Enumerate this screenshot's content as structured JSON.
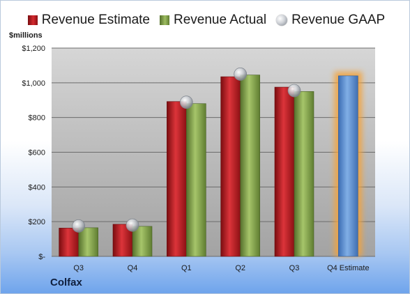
{
  "chart_data": {
    "type": "bar",
    "ylabel": "$millions",
    "ylim": [
      0,
      1200
    ],
    "yticks": [
      0,
      200,
      400,
      600,
      800,
      1000,
      1200
    ],
    "ytick_labels": [
      "$-",
      "$200",
      "$400",
      "$600",
      "$800",
      "$1,000",
      "$1,200"
    ],
    "categories": [
      "Q3",
      "Q4",
      "Q1",
      "Q2",
      "Q3",
      "Q4 Estimate"
    ],
    "series": [
      {
        "name": "Revenue Estimate",
        "kind": "bar",
        "color": "#c8232a",
        "values": [
          163,
          185,
          892,
          1035,
          975,
          null
        ]
      },
      {
        "name": "Revenue Actual",
        "kind": "bar",
        "color": "#8fae56",
        "values": [
          165,
          173,
          880,
          1045,
          950,
          null
        ]
      },
      {
        "name": "Revenue GAAP",
        "kind": "marker",
        "color": "#c0c4ca",
        "values": [
          175,
          180,
          888,
          1050,
          955,
          null
        ]
      },
      {
        "name": "Q4 Estimate",
        "kind": "bar",
        "color": "#5b8fd4",
        "highlight": "#f4a33a",
        "values": [
          null,
          null,
          null,
          null,
          null,
          1040
        ]
      }
    ],
    "grid": true,
    "legend_position": "top"
  },
  "company_label": "Colfax"
}
